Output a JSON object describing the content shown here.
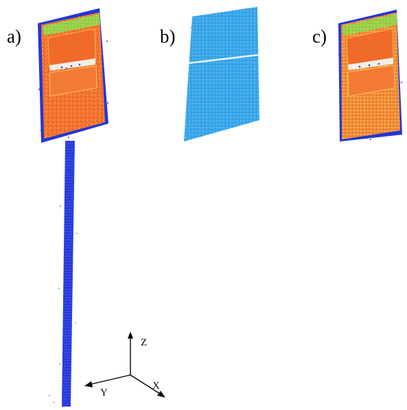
{
  "panels": [
    {
      "id": "a",
      "label": "a)",
      "description_role": "sign-with-pole"
    },
    {
      "id": "b",
      "label": "b)",
      "description_role": "sign-face-segment"
    },
    {
      "id": "c",
      "label": "c)",
      "description_role": "sign-colored-points"
    }
  ],
  "axes": {
    "z_label": "Z",
    "y_label": "Y",
    "x_label": "X"
  },
  "colors": {
    "orange": "#f2702e",
    "orange_light": "#f5a23c",
    "green": "#8cd34a",
    "blue": "#2336d6",
    "sky": "#3aa7ea",
    "white_band": "#f3efe6"
  }
}
